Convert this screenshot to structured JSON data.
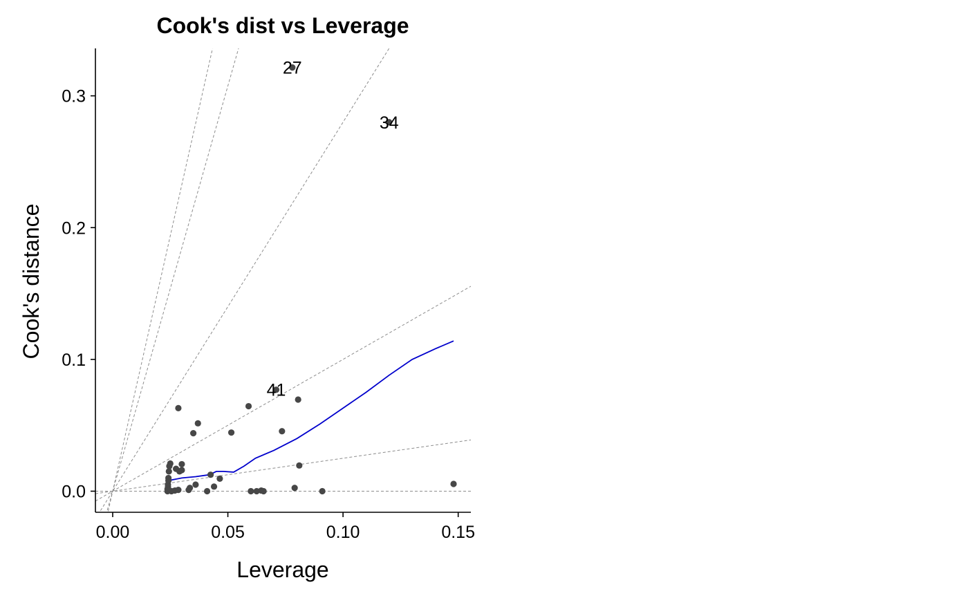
{
  "chart_data": {
    "type": "scatter",
    "title": "Cook's dist vs Leverage",
    "xlabel": "Leverage",
    "ylabel": "Cook's distance",
    "xlim": [
      -0.0075,
      0.1555
    ],
    "ylim": [
      -0.016,
      0.336
    ],
    "x_ticks": [
      0.0,
      0.05,
      0.1,
      0.15
    ],
    "x_tick_labels": [
      "0.00",
      "0.05",
      "0.10",
      "0.15"
    ],
    "y_ticks": [
      0.0,
      0.1,
      0.2,
      0.3
    ],
    "y_tick_labels": [
      "0.0",
      "0.1",
      "0.2",
      "0.3"
    ],
    "grid": false,
    "point_color": "#474747",
    "smooth_color": "#0000cc",
    "reference_line_color": "#8c8c8c",
    "points": [
      {
        "x": 0.0238,
        "y": 0.0
      },
      {
        "x": 0.0238,
        "y": 0.0015
      },
      {
        "x": 0.024,
        "y": 0.003
      },
      {
        "x": 0.024,
        "y": 0.005
      },
      {
        "x": 0.0242,
        "y": 0.008
      },
      {
        "x": 0.0242,
        "y": 0.01
      },
      {
        "x": 0.0244,
        "y": 0.015
      },
      {
        "x": 0.0246,
        "y": 0.019
      },
      {
        "x": 0.025,
        "y": 0.021
      },
      {
        "x": 0.0255,
        "y": 0.0
      },
      {
        "x": 0.027,
        "y": 0.0005
      },
      {
        "x": 0.0275,
        "y": 0.017
      },
      {
        "x": 0.0285,
        "y": 0.001
      },
      {
        "x": 0.029,
        "y": 0.015
      },
      {
        "x": 0.03,
        "y": 0.0205
      },
      {
        "x": 0.03,
        "y": 0.016
      },
      {
        "x": 0.0285,
        "y": 0.063
      },
      {
        "x": 0.033,
        "y": 0.001
      },
      {
        "x": 0.0335,
        "y": 0.0025
      },
      {
        "x": 0.035,
        "y": 0.044
      },
      {
        "x": 0.036,
        "y": 0.005
      },
      {
        "x": 0.037,
        "y": 0.0515
      },
      {
        "x": 0.041,
        "y": 0.0
      },
      {
        "x": 0.0425,
        "y": 0.0125
      },
      {
        "x": 0.044,
        "y": 0.0035
      },
      {
        "x": 0.0465,
        "y": 0.0095
      },
      {
        "x": 0.0515,
        "y": 0.0445
      },
      {
        "x": 0.059,
        "y": 0.0645
      },
      {
        "x": 0.06,
        "y": 0.0
      },
      {
        "x": 0.0625,
        "y": 0.0
      },
      {
        "x": 0.0645,
        "y": 0.0005
      },
      {
        "x": 0.0655,
        "y": 0.0
      },
      {
        "x": 0.071,
        "y": 0.077
      },
      {
        "x": 0.0735,
        "y": 0.0455
      },
      {
        "x": 0.078,
        "y": 0.3215
      },
      {
        "x": 0.079,
        "y": 0.0025
      },
      {
        "x": 0.0805,
        "y": 0.0695
      },
      {
        "x": 0.081,
        "y": 0.0195
      },
      {
        "x": 0.091,
        "y": 0.0
      },
      {
        "x": 0.12,
        "y": 0.28
      },
      {
        "x": 0.148,
        "y": 0.0055
      }
    ],
    "labeled_points": [
      {
        "label": "27",
        "x": 0.078,
        "y": 0.3215
      },
      {
        "label": "34",
        "x": 0.12,
        "y": 0.28
      },
      {
        "label": "41",
        "x": 0.071,
        "y": 0.077
      }
    ],
    "smooth_line": [
      {
        "x": 0.024,
        "y": 0.008
      },
      {
        "x": 0.03,
        "y": 0.01
      },
      {
        "x": 0.036,
        "y": 0.011
      },
      {
        "x": 0.042,
        "y": 0.0125
      },
      {
        "x": 0.045,
        "y": 0.015
      },
      {
        "x": 0.048,
        "y": 0.015
      },
      {
        "x": 0.0525,
        "y": 0.0145
      },
      {
        "x": 0.057,
        "y": 0.019
      },
      {
        "x": 0.062,
        "y": 0.025
      },
      {
        "x": 0.07,
        "y": 0.031
      },
      {
        "x": 0.08,
        "y": 0.04
      },
      {
        "x": 0.09,
        "y": 0.051
      },
      {
        "x": 0.1,
        "y": 0.063
      },
      {
        "x": 0.11,
        "y": 0.075
      },
      {
        "x": 0.12,
        "y": 0.088
      },
      {
        "x": 0.13,
        "y": 0.1
      },
      {
        "x": 0.14,
        "y": 0.108
      },
      {
        "x": 0.148,
        "y": 0.114
      }
    ],
    "reference_line_slopes": [
      0,
      0.25,
      1,
      2.8,
      6.15,
      7.75
    ]
  }
}
